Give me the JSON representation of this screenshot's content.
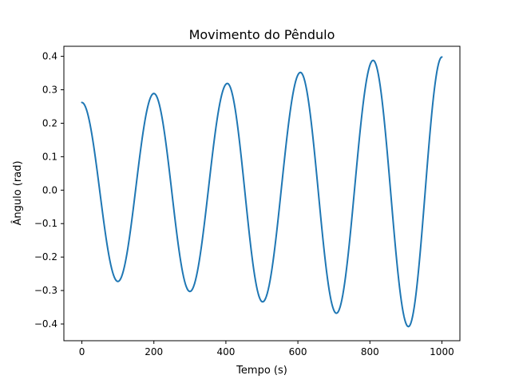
{
  "chart_data": {
    "type": "line",
    "title": "Movimento do Pêndulo",
    "xlabel": "Tempo (s)",
    "ylabel": "Ângulo (rad)",
    "xlim": [
      -50,
      1050
    ],
    "ylim": [
      -0.45,
      0.43
    ],
    "xticks": [
      0,
      200,
      400,
      600,
      800,
      1000
    ],
    "xtick_labels": [
      "0",
      "200",
      "400",
      "600",
      "800",
      "1000"
    ],
    "yticks": [
      -0.4,
      -0.3,
      -0.2,
      -0.1,
      0.0,
      0.1,
      0.2,
      0.3,
      0.4
    ],
    "ytick_labels": [
      "−0.4",
      "−0.3",
      "−0.2",
      "−0.1",
      "0.0",
      "0.1",
      "0.2",
      "0.3",
      "0.4"
    ],
    "grid": false,
    "series": [
      {
        "color": "#1f77b4",
        "x": [
          0,
          100,
          200,
          300,
          404,
          502,
          607,
          707,
          809,
          907,
          1000
        ],
        "y": [
          0.262,
          -0.273,
          0.289,
          -0.303,
          0.319,
          -0.334,
          0.352,
          -0.368,
          0.388,
          -0.408,
          0.398
        ]
      }
    ]
  }
}
